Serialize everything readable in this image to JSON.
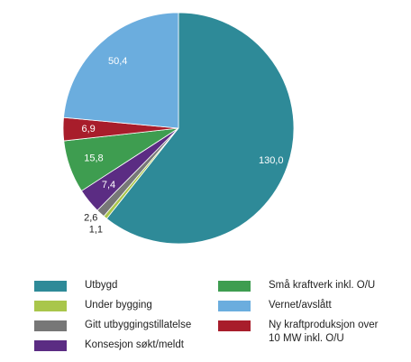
{
  "chart_data": {
    "type": "pie",
    "categories": [
      "Utbygd",
      "Under bygging",
      "Gitt utbyggingstillatelse",
      "Konsesjon søkt/meldt",
      "Små kraftverk inkl. O/U",
      "Ny kraftproduksjon over 10 MW inkl. O/U",
      "Vernet/avslått"
    ],
    "values": [
      130.0,
      1.1,
      2.6,
      7.4,
      15.8,
      6.9,
      50.4
    ],
    "value_labels": [
      "130,0",
      "1,1",
      "2,6",
      "7,4",
      "15,8",
      "6,9",
      "50,4"
    ],
    "colors": [
      "#2e8a98",
      "#a9c64b",
      "#777777",
      "#5b2c83",
      "#3e9d50",
      "#a81d2b",
      "#6badde"
    ]
  }
}
